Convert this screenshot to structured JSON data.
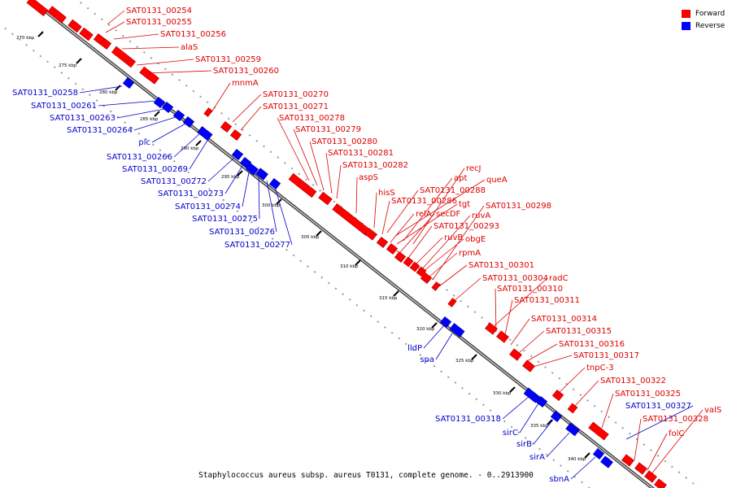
{
  "colors": {
    "forward": "#ff0000",
    "reverse": "#0000ff",
    "axis": "#888888"
  },
  "legend": [
    {
      "label": "Forward",
      "color": "#ff0000"
    },
    {
      "label": "Reverse",
      "color": "#0000ff"
    }
  ],
  "caption": "Staphylococcus aureus subsp. aureus T0131, complete genome. - 0..2913900",
  "ticks": [
    "270 kbp",
    "275 kbp",
    "280 kbp",
    "285 kbp",
    "290 kbp",
    "295 kbp",
    "300 kbp",
    "305 kbp",
    "310 kbp",
    "315 kbp",
    "320 kbp",
    "325 kbp",
    "330 kbp",
    "335 kbp",
    "340 kbp"
  ],
  "forward_labels": [
    "SAT0131_00254",
    "SAT0131_00255",
    "SAT0131_00256",
    "alaS",
    "SAT0131_00259",
    "SAT0131_00260",
    "mnmA",
    "SAT0131_00270",
    "SAT0131_00271",
    "SAT0131_00278",
    "SAT0131_00279",
    "SAT0131_00280",
    "SAT0131_00281",
    "SAT0131_00282",
    "aspS",
    "hisS",
    "SAT0131_00286",
    "relA",
    "secDF",
    "SAT0131_00293",
    "ruvB",
    "obgE",
    "rpmA",
    "recJ",
    "apt",
    "queA",
    "SAT0131_00288",
    "tgt",
    "SAT0131_00298",
    "ruvA",
    "SAT0131_00301",
    "SAT0131_00304",
    "radC",
    "SAT0131_00310",
    "SAT0131_00311",
    "SAT0131_00314",
    "SAT0131_00315",
    "SAT0131_00316",
    "SAT0131_00317",
    "tnpC-3",
    "SAT0131_00322",
    "SAT0131_00325",
    "valS",
    "SAT0131_00328",
    "folC"
  ],
  "reverse_labels": [
    "SAT0131_00258",
    "SAT0131_00261",
    "SAT0131_00263",
    "SAT0131_00264",
    "plc",
    "SAT0131_00266",
    "SAT0131_00269",
    "SAT0131_00272",
    "SAT0131_00273",
    "SAT0131_00274",
    "SAT0131_00275",
    "SAT0131_00276",
    "SAT0131_00277",
    "lldP",
    "spa",
    "SAT0131_00318",
    "sirC",
    "sirB",
    "sirA",
    "sbnA",
    "SAT0131_00327"
  ]
}
